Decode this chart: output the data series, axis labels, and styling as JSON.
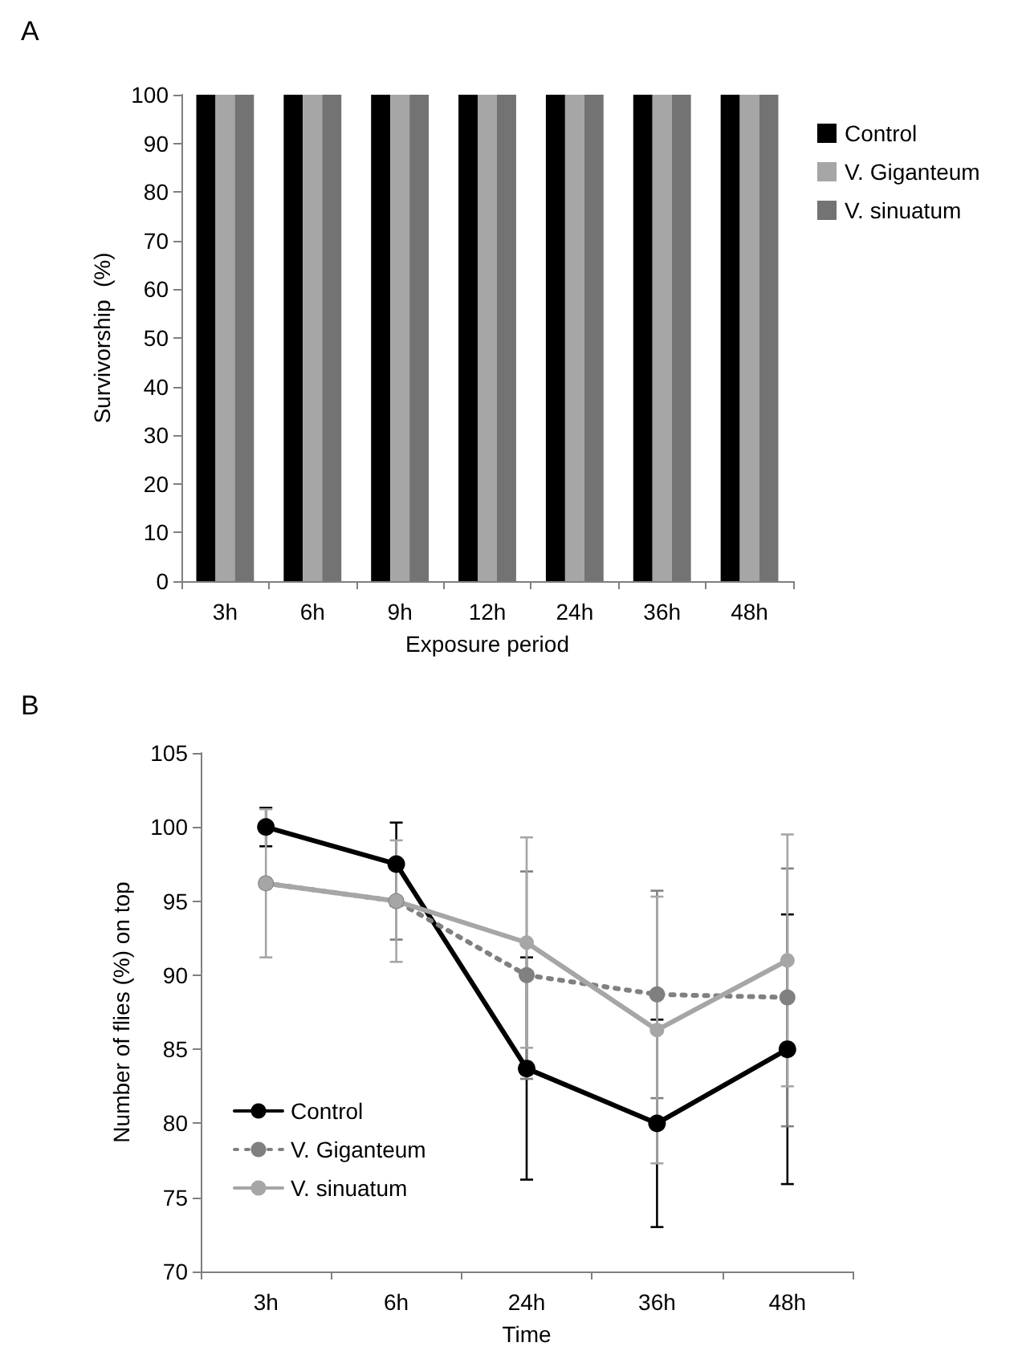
{
  "chart_data": [
    {
      "type": "bar",
      "title": "A",
      "xlabel": "Exposure period",
      "ylabel": "Survivorship  (%)",
      "categories": [
        "3h",
        "6h",
        "9h",
        "12h",
        "24h",
        "36h",
        "48h"
      ],
      "series": [
        {
          "name": "Control",
          "color": "#000000",
          "values": [
            100,
            100,
            100,
            100,
            100,
            100,
            100
          ]
        },
        {
          "name": "V. Giganteum",
          "color": "#a6a6a6",
          "values": [
            100,
            100,
            100,
            100,
            100,
            100,
            100
          ]
        },
        {
          "name": "V. sinuatum",
          "color": "#737373",
          "values": [
            100,
            100,
            100,
            100,
            100,
            100,
            100
          ]
        }
      ],
      "ylim": [
        0,
        100
      ],
      "yticks": [
        0,
        10,
        20,
        30,
        40,
        50,
        60,
        70,
        80,
        90,
        100
      ],
      "grid": false,
      "legend": "top right"
    },
    {
      "type": "line",
      "title": "B",
      "xlabel": "Time",
      "ylabel": "Number of flies (%) on top",
      "categories": [
        "3h",
        "6h",
        "24h",
        "36h",
        "48h"
      ],
      "series": [
        {
          "name": "Control",
          "color": "#000000",
          "line_style": "solid",
          "values": [
            100,
            97.5,
            83.7,
            80,
            85
          ],
          "errors": [
            1.3,
            2.8,
            7.5,
            7,
            9.1
          ]
        },
        {
          "name": "V. Giganteum",
          "color": "#808080",
          "line_style": "dotted",
          "values": [
            96.2,
            95,
            90,
            88.7,
            88.5
          ],
          "errors": [
            null,
            2.6,
            7,
            7,
            8.7
          ]
        },
        {
          "name": "V. sinuatum",
          "color": "#a6a6a6",
          "line_style": "solid",
          "values": [
            96.2,
            95,
            92.2,
            86.3,
            91
          ],
          "errors": [
            5,
            4.1,
            7.1,
            9,
            8.5
          ]
        }
      ],
      "ylim": [
        70,
        105
      ],
      "yticks": [
        70,
        75,
        80,
        85,
        90,
        95,
        100,
        105
      ],
      "grid": false,
      "legend": "bottom left",
      "marker": "circle"
    }
  ]
}
